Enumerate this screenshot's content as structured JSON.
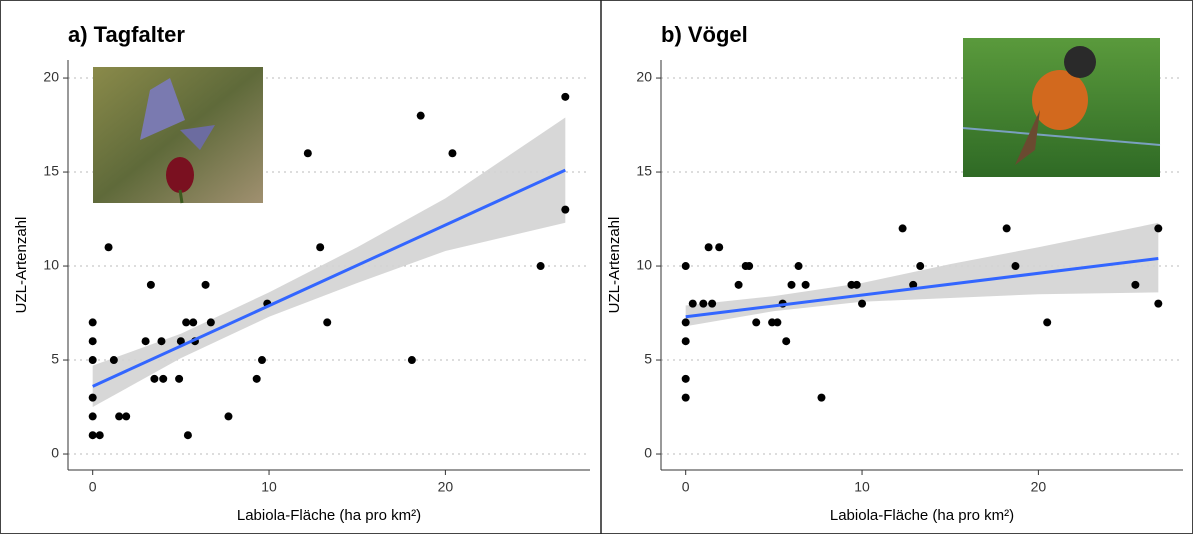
{
  "chart_data": [
    {
      "type": "scatter",
      "title": "a) Tagfalter",
      "xlabel": "Labiola-Fläche (ha pro km²)",
      "ylabel": "UZL-Artenzahl",
      "x": [
        0,
        0,
        0,
        0,
        0,
        0,
        0.4,
        0.9,
        1.2,
        1.5,
        1.9,
        3,
        3.3,
        3.5,
        3.9,
        4,
        4.9,
        5,
        5.3,
        5.4,
        5.7,
        5.8,
        6.4,
        6.7,
        7.7,
        9.3,
        9.6,
        9.9,
        12.2,
        12.9,
        13.3,
        18.1,
        18.6,
        20.4,
        25.4,
        26.8,
        26.8
      ],
      "values": [
        7,
        6,
        5,
        3,
        2,
        1,
        1,
        11,
        5,
        2,
        2,
        6,
        9,
        4,
        6,
        4,
        4,
        6,
        7,
        1,
        7,
        6,
        9,
        7,
        2,
        4,
        5,
        8,
        16,
        11,
        7,
        5,
        18,
        16,
        10,
        13,
        19
      ],
      "color": "#000000",
      "fit": {
        "x": [
          0,
          26.8
        ],
        "y": [
          3.6,
          15.1
        ],
        "color": "#3366ff"
      },
      "band": {
        "x": [
          0,
          5,
          10,
          15,
          20,
          26.8
        ],
        "lower": [
          2.5,
          5.1,
          7.3,
          9.1,
          10.8,
          12.3
        ],
        "upper": [
          4.7,
          6.4,
          8.6,
          11.0,
          13.6,
          17.9
        ],
        "color": "#d3d3d3"
      },
      "xlim": [
        -1.4,
        28.2
      ],
      "ylim": [
        -0.85,
        20.96
      ],
      "xticks": [
        0,
        10,
        20
      ],
      "yticks": [
        0,
        5,
        10,
        15,
        20
      ],
      "grid": true
    },
    {
      "type": "scatter",
      "title": "b) Vögel",
      "xlabel": "Labiola-Fläche (ha pro km²)",
      "ylabel": "UZL-Artenzahl",
      "x": [
        0,
        0,
        0,
        0,
        0,
        0.4,
        1,
        1.3,
        1.5,
        1.9,
        3,
        3.4,
        3.6,
        4,
        4.9,
        5.2,
        5.5,
        5.7,
        6,
        6.4,
        6.8,
        7.7,
        9.4,
        9.7,
        10,
        12.3,
        12.9,
        13.3,
        18.2,
        18.7,
        20.5,
        25.5,
        26.8,
        26.8
      ],
      "values": [
        10,
        7,
        6,
        4,
        3,
        8,
        8,
        11,
        8,
        11,
        9,
        10,
        10,
        7,
        7,
        7,
        8,
        6,
        9,
        10,
        9,
        3,
        9,
        9,
        8,
        12,
        9,
        10,
        12,
        10,
        7,
        9,
        12,
        8
      ],
      "color": "#000000",
      "fit": {
        "x": [
          0,
          26.8
        ],
        "y": [
          7.3,
          10.4
        ],
        "color": "#3366ff"
      },
      "band": {
        "x": [
          0,
          5,
          10,
          15,
          20,
          26.8
        ],
        "lower": [
          6.8,
          7.6,
          8.1,
          8.3,
          8.5,
          8.6
        ],
        "upper": [
          7.9,
          8.4,
          9.1,
          10.1,
          11.0,
          12.3
        ],
        "color": "#d3d3d3"
      },
      "xlim": [
        -1.4,
        28.2
      ],
      "ylim": [
        -0.85,
        20.96
      ],
      "xticks": [
        0,
        10,
        20
      ],
      "yticks": [
        0,
        5,
        10,
        15,
        20
      ],
      "grid": true
    }
  ]
}
